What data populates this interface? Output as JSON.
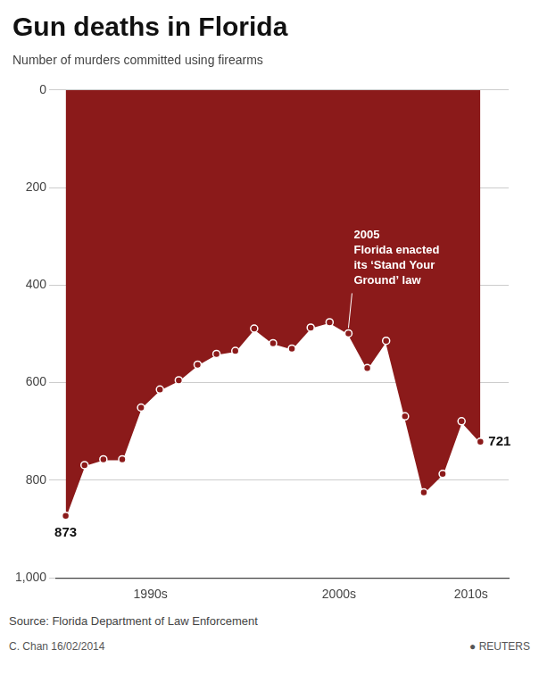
{
  "chart_data": {
    "type": "area",
    "title": "Gun deaths in Florida",
    "subtitle": "Number of murders committed using firearms",
    "source": "Source: Florida Department of Law Enforcement",
    "credit": "C. Chan  16/02/2014",
    "note": "● REUTERS",
    "x": [
      1990,
      1991,
      1992,
      1993,
      1994,
      1995,
      1996,
      1997,
      1998,
      1999,
      2000,
      2001,
      2002,
      2003,
      2004,
      2005,
      2006,
      2007,
      2008,
      2009,
      2010,
      2011,
      2012
    ],
    "values": [
      873,
      769,
      757,
      757,
      651,
      614,
      595,
      563,
      541,
      535,
      489,
      519,
      530,
      487,
      476,
      499,
      570,
      514,
      669,
      825,
      787,
      679,
      721
    ],
    "color": "#8B1A1A",
    "marker": "circle",
    "xlim": [
      1989.5,
      2013.5
    ],
    "xticks": [
      {
        "value": 1994.5,
        "label": "1990s"
      },
      {
        "value": 2004.5,
        "label": "2000s"
      },
      {
        "value": 2011.5,
        "label": "2010s"
      }
    ],
    "ylim": [
      1000,
      0
    ],
    "yticks": [
      0,
      200,
      400,
      600,
      800,
      {
        "value": 1000,
        "label": "1,000"
      }
    ],
    "grid": "y",
    "annotations": [
      {
        "text": "2005\nFlorida enacted\nits ‘Stand Your\nGround’ law",
        "x": 2005,
        "y": 499
      },
      {
        "text": "873",
        "x": 1990,
        "y": 873
      },
      {
        "text": "721",
        "x": 2012,
        "y": 721
      }
    ]
  }
}
